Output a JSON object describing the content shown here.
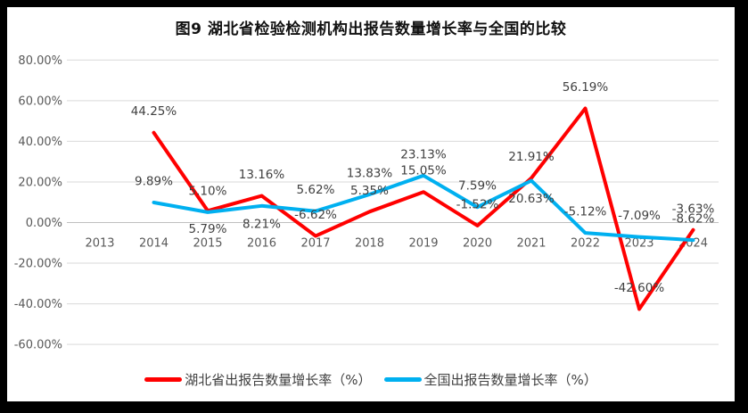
{
  "frame": {
    "background": "#000000",
    "panel_background": "#ffffff"
  },
  "chart_data": {
    "type": "line",
    "title": "图9 湖北省检验检测机构出报告数量增长率与全国的比较",
    "categories": [
      "2013",
      "2014",
      "2015",
      "2016",
      "2017",
      "2018",
      "2019",
      "2020",
      "2021",
      "2022",
      "2023",
      "2024"
    ],
    "series": [
      {
        "name": "湖北省出报告数量增长率（%）",
        "color": "#FF0000",
        "values": [
          null,
          44.25,
          5.79,
          13.16,
          -6.62,
          5.35,
          15.05,
          -1.52,
          21.91,
          56.19,
          -42.6,
          -3.63
        ],
        "labels": [
          "",
          "44.25%",
          "5.79%",
          "13.16%",
          "-6.62%",
          "5.35%",
          "15.05%",
          "-1.52%",
          "21.91%",
          "56.19%",
          "-42.60%",
          "-3.63%"
        ],
        "label_below_indices": [
          2
        ]
      },
      {
        "name": "全国出报告数量增长率（%）",
        "color": "#00B0F0",
        "values": [
          null,
          9.89,
          5.1,
          8.21,
          5.62,
          13.83,
          23.13,
          7.59,
          20.63,
          -5.12,
          -7.09,
          -8.62
        ],
        "labels": [
          "",
          "9.89%",
          "5.10%",
          "8.21%",
          "5.62%",
          "13.83%",
          "23.13%",
          "7.59%",
          "20.63%",
          "-5.12%",
          "-7.09%",
          "-8.62%"
        ],
        "label_below_indices": [
          3,
          8
        ]
      }
    ],
    "y_ticks": [
      {
        "value": 80,
        "label": "80.00%"
      },
      {
        "value": 60,
        "label": "60.00%"
      },
      {
        "value": 40,
        "label": "40.00%"
      },
      {
        "value": 20,
        "label": "20.00%"
      },
      {
        "value": 0,
        "label": "0.00%"
      },
      {
        "value": -20,
        "label": "-20.00%"
      },
      {
        "value": -40,
        "label": "-40.00%"
      },
      {
        "value": -60,
        "label": "-60.00%"
      }
    ],
    "ylim": [
      -60,
      80
    ],
    "grid": true,
    "legend_position": "bottom",
    "colors": {
      "axis_text": "#595959",
      "data_label_text": "#404040",
      "gridline": "#D9D9D9",
      "zero_axis": "#BFBFBF"
    }
  }
}
